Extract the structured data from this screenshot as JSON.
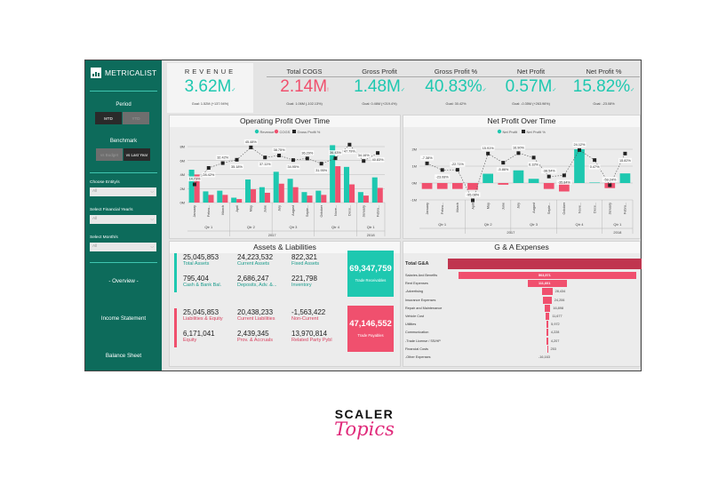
{
  "sidebar": {
    "brand": "METRICALIST",
    "period_label": "Period",
    "period_options": [
      "MTD",
      "YTD"
    ],
    "benchmark_label": "Benchmark",
    "benchmark_options": [
      "vs Budget",
      "vs Last Year"
    ],
    "filters": [
      {
        "label": "Choose Entity/s",
        "value": "All"
      },
      {
        "label": "Select Financial Year/s",
        "value": "All"
      },
      {
        "label": "Select Month/s",
        "value": "All"
      }
    ],
    "nav": [
      "- Overview -",
      "Income Statement",
      "Balance Sheet"
    ]
  },
  "kpis": [
    {
      "title": "REVENUE",
      "value": "3.62M",
      "goal": "Goal: 1.52M (+137.94%)",
      "color": "#1ec8b0"
    },
    {
      "title": "Total COGS",
      "value": "2.14M",
      "goal": "Goal: 1.06M (-102.13%)",
      "color": "#f0506e"
    },
    {
      "title": "Gross Profit",
      "value": "1.48M",
      "goal": "Goal: 0.46M (+219.4%)",
      "color": "#1ec8b0"
    },
    {
      "title": "Gross Profit %",
      "value": "40.83%",
      "goal": "Goal: 30.42%",
      "color": "#1ec8b0"
    },
    {
      "title": "Net Profit",
      "value": "0.57M",
      "goal": "Goal: -0.35M (+263.96%)",
      "color": "#1ec8b0"
    },
    {
      "title": "Net Profit %",
      "value": "15.82%",
      "goal": "Goal: -23.08%",
      "color": "#1ec8b0"
    }
  ],
  "chart_data": [
    {
      "type": "bar",
      "title": "Operating Profit Over Time",
      "legend": [
        "Revenue",
        "COGS",
        "Gross Profit %"
      ],
      "categories": [
        "January",
        "Febru...",
        "March",
        "April",
        "May",
        "June",
        "July",
        "August",
        "Septe...",
        "October",
        "Nove...",
        "Dece...",
        "January",
        "Febru..."
      ],
      "quarters": [
        {
          "label": "Qtr 1",
          "n": 3
        },
        {
          "label": "Qtr 2",
          "n": 3
        },
        {
          "label": "Qtr 3",
          "n": 3
        },
        {
          "label": "Qtr 4",
          "n": 3
        },
        {
          "label": "Qtr 1",
          "n": 2
        }
      ],
      "years": [
        {
          "label": "2017",
          "n": 12
        },
        {
          "label": "2018",
          "n": 2
        }
      ],
      "yticks": [
        "0M",
        "2M",
        "4M",
        "6M",
        "8M"
      ],
      "ylim": [
        0,
        8
      ],
      "series": [
        {
          "name": "Revenue",
          "color": "#1ec8b0",
          "values": [
            4.7,
            1.6,
            1.7,
            0.7,
            3.3,
            2.2,
            4.4,
            3.4,
            1.5,
            1.7,
            8.2,
            5.1,
            1.5,
            3.6
          ]
        },
        {
          "name": "COGS",
          "color": "#f0506e",
          "values": [
            4.0,
            1.1,
            1.1,
            0.5,
            1.9,
            1.4,
            2.7,
            2.2,
            1.0,
            1.1,
            5.2,
            2.6,
            1.0,
            2.1
          ]
        }
      ],
      "line": {
        "name": "Gross Profit %",
        "values": [
          14.73,
          28.42,
          32.42,
          35.18,
          45.48,
          37.11,
          38.75,
          34.95,
          36.29,
          31.95,
          36.43,
          47.79,
          34.16,
          40.83
        ],
        "labels": [
          "14.73%",
          "28.42%",
          "32.42%",
          "35.18%",
          "45.48%",
          "37.11%",
          "38.75%",
          "34.95%",
          "36.29%",
          "31.95%",
          "36.43%",
          "47.79%",
          "34.16%",
          "40.83%"
        ]
      }
    },
    {
      "type": "bar",
      "title": "Net Profit Over Time",
      "legend": [
        "Net Profit",
        "Net Profit %"
      ],
      "categories": [
        "January",
        "Febru...",
        "March",
        "April",
        "May",
        "June",
        "July",
        "August",
        "Septe...",
        "October",
        "Nove...",
        "Dece...",
        "January",
        "Febru..."
      ],
      "quarters": [
        {
          "label": "Qtr 1",
          "n": 3
        },
        {
          "label": "Qtr 2",
          "n": 3
        },
        {
          "label": "Qtr 3",
          "n": 3
        },
        {
          "label": "Qtr 4",
          "n": 3
        },
        {
          "label": "Qtr 1",
          "n": 2
        }
      ],
      "years": [
        {
          "label": "2017",
          "n": 12
        },
        {
          "label": "2018",
          "n": 2
        }
      ],
      "yticks": [
        "-1M",
        "0M",
        "1M",
        "2M"
      ],
      "ylim": [
        -1,
        2
      ],
      "series": [
        {
          "name": "Net Profit",
          "color": "#1ec8b0",
          "neg_color": "#f0506e",
          "values": [
            -0.35,
            -0.35,
            -0.35,
            -0.4,
            0.55,
            -0.1,
            0.75,
            0.25,
            -0.35,
            -0.5,
            2.0,
            0.03,
            -0.3,
            0.57
          ]
        }
      ],
      "line": {
        "name": "Net Profit %",
        "values": [
          -7.38,
          -23.08,
          -22.71,
          -95.08,
          15.91,
          -5.86,
          16.9,
          6.32,
          -38.54,
          -35.84,
          24.12,
          0.47,
          -59.24,
          15.82
        ],
        "labels": [
          "-7.38%",
          "-23.08%",
          "-22.71%",
          "-95.08%",
          "15.91%",
          "-5.86%",
          "16.90%",
          "6.32%",
          "-38.54%",
          "-35.84%",
          "24.12%",
          "0.47%",
          "-59.24%",
          "15.82%"
        ]
      }
    }
  ],
  "assets": {
    "title": "Assets & Liabilities",
    "top": [
      {
        "value": "25,045,853",
        "label": "Total Assets"
      },
      {
        "value": "24,223,532",
        "label": "Current Assets"
      },
      {
        "value": "822,321",
        "label": "Fixed Assets"
      },
      {
        "value": "795,404",
        "label": "Cash & Bank Bal."
      },
      {
        "value": "2,686,247",
        "label": "Deposits, Adv. &..."
      },
      {
        "value": "221,798",
        "label": "Inventory"
      }
    ],
    "top_big": {
      "value": "69,347,759",
      "label": "Trade Receivables"
    },
    "bottom": [
      {
        "value": "25,045,853",
        "label": "Liabilities & Equity"
      },
      {
        "value": "20,438,233",
        "label": "Current Liabilities"
      },
      {
        "value": "-1,563,422",
        "label": "Non-Current"
      },
      {
        "value": "6,171,041",
        "label": "Equity"
      },
      {
        "value": "2,439,345",
        "label": "Prov. & Accruals"
      },
      {
        "value": "13,970,814",
        "label": "Related Party Pybl"
      }
    ],
    "bottom_big": {
      "value": "47,146,552",
      "label": "Trade Payables"
    }
  },
  "gna": {
    "title": "G & A Expenses",
    "total_label": "Total G&A",
    "items": [
      {
        "name": "Salaries And Benefits",
        "value": 503571,
        "label": "503,571"
      },
      {
        "name": "Rent Expenses",
        "value": 111601,
        "label": "111,601"
      },
      {
        "name": "-Advertising",
        "value": 28434,
        "label": "28,434"
      },
      {
        "name": "Insurance Expenses",
        "value": 24206,
        "label": "24,206"
      },
      {
        "name": "Repair and Maintenance",
        "value": 16898,
        "label": "16,898"
      },
      {
        "name": "Vehicle Cost",
        "value": 11677,
        "label": "11,677"
      },
      {
        "name": "Utilities",
        "value": 5972,
        "label": "5,972"
      },
      {
        "name": "Communication",
        "value": 4228,
        "label": "4,228"
      },
      {
        "name": "-Trade License / SS/HP",
        "value": 4207,
        "label": "4,207"
      },
      {
        "name": "Financial Costs",
        "value": 253,
        "label": "253"
      },
      {
        "name": "-Other Expenses",
        "value": -16163,
        "label": "-16,163"
      }
    ]
  },
  "footer": {
    "brand_top": "SCALER",
    "brand_bottom": "Topics"
  }
}
